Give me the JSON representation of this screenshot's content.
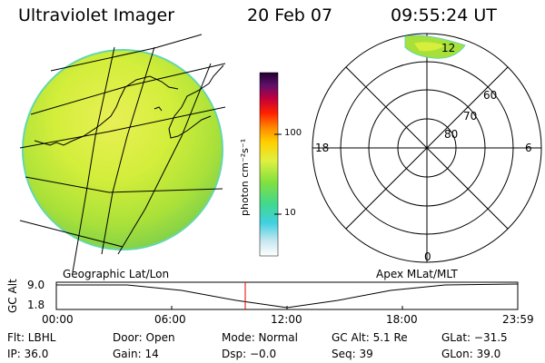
{
  "header": {
    "instrument": "Ultraviolet Imager",
    "date": "20 Feb 07",
    "time": "09:55:24 UT"
  },
  "colorbar": {
    "unit_label": "photon cm⁻²s⁻¹",
    "ticks": [
      "100",
      "10"
    ]
  },
  "polar_plot": {
    "lat_labels": [
      "60",
      "70",
      "80"
    ],
    "mlt_labels": [
      "12",
      "18",
      "6",
      "0"
    ]
  },
  "projection_labels": {
    "left": "Geographic Lat/Lon",
    "right": "Apex MLat/MLT"
  },
  "altitude_plot": {
    "ylabel": "GC Alt",
    "yticks": [
      "9.0",
      "1.8"
    ],
    "xticks": [
      "00:00",
      "06:00",
      "12:00",
      "18:00",
      "23:59"
    ]
  },
  "info": {
    "flt": "Flt: LBHL",
    "door": "Door: Open",
    "mode": "Mode: Normal",
    "gc_alt": "GC Alt: 5.1 Re",
    "glat": "GLat: −31.5",
    "ip": "IP: 36.0",
    "gain": "Gain: 14",
    "dsp": "Dsp:    −0.0",
    "seq": "Seq: 39",
    "glon": "GLon: 39.0"
  },
  "colors": {
    "image_fill": "#d8f03a",
    "image_edge": "#5ed6b0",
    "time_marker": "#e00000"
  }
}
